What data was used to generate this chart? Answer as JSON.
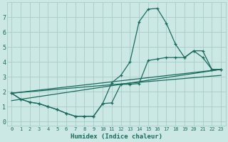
{
  "xlabel": "Humidex (Indice chaleur)",
  "background_color": "#cce8e4",
  "grid_color": "#a8ccc8",
  "line_color": "#1a6b5e",
  "xlim": [
    -0.5,
    23.5
  ],
  "ylim": [
    -0.3,
    8.0
  ],
  "xticks": [
    0,
    1,
    2,
    3,
    4,
    5,
    6,
    7,
    8,
    9,
    10,
    11,
    12,
    13,
    14,
    15,
    16,
    17,
    18,
    19,
    20,
    21,
    22,
    23
  ],
  "yticks": [
    0,
    1,
    2,
    3,
    4,
    5,
    6,
    7
  ],
  "line1_x": [
    0,
    1,
    2,
    3,
    4,
    5,
    6,
    7,
    8,
    9,
    10,
    11,
    12,
    13,
    14,
    15,
    16,
    17,
    18,
    19,
    20,
    21,
    22,
    23
  ],
  "line1_y": [
    1.9,
    1.5,
    1.3,
    1.2,
    1.0,
    0.8,
    0.55,
    0.35,
    0.35,
    0.35,
    1.2,
    2.6,
    3.1,
    4.0,
    6.7,
    7.55,
    7.6,
    6.6,
    5.2,
    4.3,
    4.75,
    4.3,
    3.5,
    3.5
  ],
  "line2_x": [
    0,
    1,
    2,
    3,
    4,
    5,
    6,
    7,
    8,
    9,
    10,
    11,
    12,
    13,
    14,
    15,
    16,
    17,
    18,
    19,
    20,
    21,
    22,
    23
  ],
  "line2_y": [
    1.9,
    1.5,
    1.3,
    1.2,
    1.0,
    0.8,
    0.55,
    0.35,
    0.35,
    0.35,
    1.2,
    1.25,
    2.5,
    2.5,
    2.55,
    4.1,
    4.2,
    4.3,
    4.3,
    4.3,
    4.75,
    4.75,
    3.5,
    3.5
  ],
  "line3_x": [
    0,
    23
  ],
  "line3_y": [
    1.9,
    3.5
  ],
  "line4_x": [
    0,
    23
  ],
  "line4_y": [
    1.4,
    3.5
  ],
  "line5_x": [
    0,
    23
  ],
  "line5_y": [
    1.9,
    3.1
  ]
}
